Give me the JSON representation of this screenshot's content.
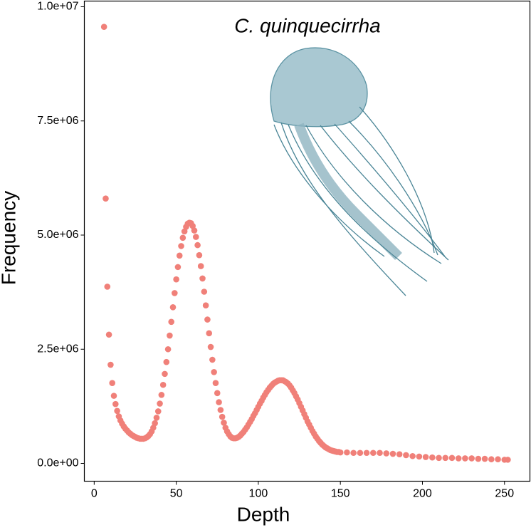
{
  "chart_data": {
    "type": "scatter",
    "title": "C. quinquecirrha",
    "x_label": "Depth",
    "y_label": "Frequency",
    "color": "#f08079",
    "x": [
      6,
      7,
      8,
      9,
      10,
      11,
      12,
      13,
      14,
      15,
      16,
      17,
      18,
      19,
      20,
      21,
      22,
      23,
      24,
      25,
      26,
      27,
      28,
      29,
      30,
      31,
      32,
      33,
      34,
      35,
      36,
      37,
      38,
      39,
      40,
      41,
      42,
      43,
      44,
      45,
      46,
      47,
      48,
      49,
      50,
      51,
      52,
      53,
      54,
      55,
      56,
      57,
      58,
      59,
      60,
      61,
      62,
      63,
      64,
      65,
      66,
      67,
      68,
      69,
      70,
      71,
      72,
      73,
      74,
      75,
      76,
      77,
      78,
      79,
      80,
      81,
      82,
      83,
      84,
      85,
      86,
      87,
      88,
      89,
      90,
      91,
      92,
      93,
      94,
      95,
      96,
      97,
      98,
      99,
      100,
      101,
      102,
      103,
      104,
      105,
      106,
      107,
      108,
      109,
      110,
      111,
      112,
      113,
      114,
      115,
      116,
      117,
      118,
      119,
      120,
      121,
      122,
      123,
      124,
      125,
      126,
      127,
      128,
      129,
      130,
      131,
      132,
      133,
      134,
      135,
      136,
      137,
      138,
      139,
      140,
      141,
      142,
      143,
      144,
      145,
      146,
      147,
      148,
      149,
      150,
      154,
      158,
      162,
      166,
      170,
      174,
      178,
      182,
      186,
      190,
      194,
      198,
      202,
      206,
      210,
      214,
      218,
      222,
      226,
      230,
      234,
      238,
      242,
      246,
      250,
      252
    ],
    "values": [
      9560000.0,
      5800000.0,
      3870000.0,
      2820000.0,
      2160000.0,
      1760000.0,
      1480000.0,
      1300000.0,
      1150000.0,
      1030000.0,
      940000.0,
      870000.0,
      810000.0,
      760000.0,
      720000.0,
      680000.0,
      650000.0,
      620000.0,
      600000.0,
      580000.0,
      560000.0,
      550000.0,
      540000.0,
      540000.0,
      540000.0,
      550000.0,
      570000.0,
      600000.0,
      640000.0,
      700000.0,
      780000.0,
      880000.0,
      1000000.0,
      1140000.0,
      1310000.0,
      1500000.0,
      1720000.0,
      1960000.0,
      2220000.0,
      2500000.0,
      2800000.0,
      3100000.0,
      3420000.0,
      3730000.0,
      4030000.0,
      4300000.0,
      4550000.0,
      4760000.0,
      4940000.0,
      5080000.0,
      5180000.0,
      5250000.0,
      5270000.0,
      5260000.0,
      5200000.0,
      5100000.0,
      4960000.0,
      4780000.0,
      4560000.0,
      4320000.0,
      4050000.0,
      3760000.0,
      3460000.0,
      3150000.0,
      2850000.0,
      2550000.0,
      2270000.0,
      2000000.0,
      1760000.0,
      1540000.0,
      1340000.0,
      1170000.0,
      1020000.0,
      890000.0,
      780000.0,
      700000.0,
      640000.0,
      590000.0,
      560000.0,
      550000.0,
      550000.0,
      560000.0,
      580000.0,
      610000.0,
      650000.0,
      690000.0,
      740000.0,
      790000.0,
      850000.0,
      910000.0,
      970000.0,
      1040000.0,
      1100000.0,
      1170000.0,
      1240000.0,
      1310000.0,
      1370000.0,
      1440000.0,
      1500000.0,
      1560000.0,
      1610000.0,
      1660000.0,
      1700000.0,
      1740000.0,
      1770000.0,
      1790000.0,
      1810000.0,
      1820000.0,
      1820000.0,
      1820000.0,
      1800000.0,
      1780000.0,
      1750000.0,
      1710000.0,
      1660000.0,
      1600000.0,
      1540000.0,
      1470000.0,
      1400000.0,
      1320000.0,
      1240000.0,
      1160000.0,
      1080000.0,
      1000000.0,
      920000.0,
      850000.0,
      780000.0,
      710000.0,
      650000.0,
      590000.0,
      540000.0,
      490000.0,
      450000.0,
      410000.0,
      380000.0,
      350000.0,
      330000.0,
      310000.0,
      290000.0,
      280000.0,
      270000.0,
      260000.0,
      250000.0,
      250000.0,
      240000.0,
      240000.0,
      230000.0,
      230000.0,
      230000.0,
      230000.0,
      230000.0,
      220000.0,
      210000.0,
      200000.0,
      180000.0,
      160000.0,
      150000.0,
      140000.0,
      130000.0,
      120000.0,
      120000.0,
      120000.0,
      110000.0,
      110000.0,
      110000.0,
      100000.0,
      100000.0,
      90000.0,
      90000.0,
      80000.0,
      80000.0
    ],
    "xlim": [
      -6,
      265.5
    ],
    "ylim": [
      -390000.0,
      10125000.0
    ],
    "xticks": [
      0,
      50,
      100,
      150,
      200,
      250
    ],
    "yticks": [
      {
        "value": 0,
        "label": "0.0e+00"
      },
      {
        "value": 2500000,
        "label": "2.5e+06"
      },
      {
        "value": 5000000,
        "label": "5.0e+06"
      },
      {
        "value": 7500000,
        "label": "7.5e+06"
      },
      {
        "value": 10000000,
        "label": "1.0e+07"
      }
    ]
  }
}
